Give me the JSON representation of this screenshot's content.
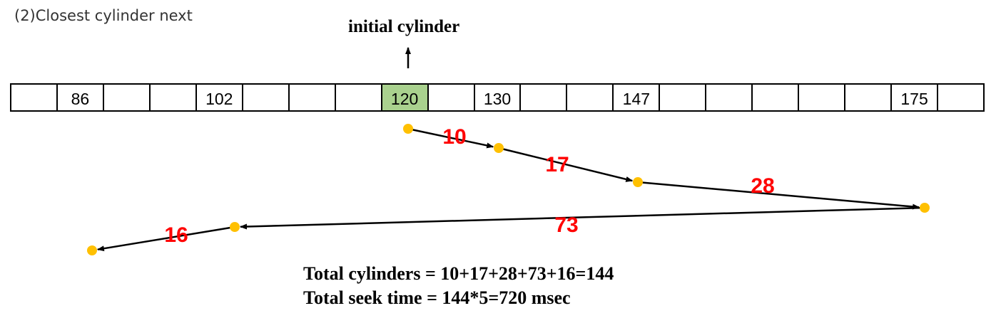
{
  "heading": "(2)Closest cylinder next",
  "initial_label": "initial cylinder",
  "cylinders": [
    "",
    "86",
    "",
    "",
    "102",
    "",
    "",
    "",
    "120",
    "",
    "130",
    "",
    "",
    "147",
    "",
    "",
    "",
    "",
    "",
    "175",
    ""
  ],
  "initial_cell_value": "120",
  "seek_order": [
    120,
    130,
    147,
    175,
    102,
    86
  ],
  "seek_distances": [
    "10",
    "17",
    "28",
    "73",
    "16"
  ],
  "colors": {
    "initial_cell": "#a9d18e",
    "point": "#ffc000",
    "distance_label": "#ff0000"
  },
  "summary": {
    "line1": "Total cylinders = 10+17+28+73+16=144",
    "line2": "Total seek time = 144*5=720 msec"
  }
}
